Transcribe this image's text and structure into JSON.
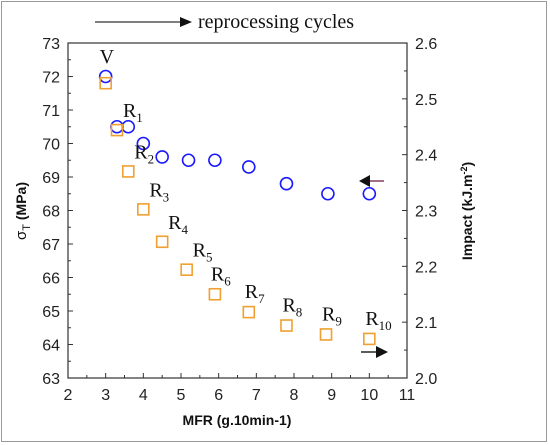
{
  "chart_data": {
    "type": "scatter",
    "title": "",
    "xlabel": "MFR (g.10min-1)",
    "ylabel_left": "σT (MPa)",
    "ylabel_left_symbol": "σ",
    "ylabel_left_sub": "T",
    "ylabel_left_unit": " (MPa)",
    "ylabel_right": "Impact (kJ.m-2)",
    "ylabel_right_main": "Impact (kJ.m",
    "ylabel_right_sup": "-2",
    "ylabel_right_end": ")",
    "xlim": [
      2,
      11
    ],
    "ylim_left": [
      63,
      73
    ],
    "ylim_right": [
      2.0,
      2.6
    ],
    "x_ticks": [
      "2",
      "3",
      "4",
      "5",
      "6",
      "7",
      "8",
      "9",
      "10",
      "11"
    ],
    "y_left_ticks": [
      "63",
      "64",
      "65",
      "66",
      "67",
      "68",
      "69",
      "70",
      "71",
      "72",
      "73"
    ],
    "y_right_ticks": [
      "2.0",
      "2.1",
      "2.2",
      "2.3",
      "2.4",
      "2.5",
      "2.6"
    ],
    "grid": false,
    "top_annotation": "reprocessing cycles",
    "series": [
      {
        "name": "σT",
        "axis": "left",
        "marker": "circle",
        "color": "#1a1aff",
        "direction_arrow": "left",
        "points": [
          {
            "x": 3.0,
            "y": 72.0
          },
          {
            "x": 3.3,
            "y": 70.5
          },
          {
            "x": 3.6,
            "y": 70.5
          },
          {
            "x": 4.0,
            "y": 70.0
          },
          {
            "x": 4.5,
            "y": 69.6
          },
          {
            "x": 5.2,
            "y": 69.5
          },
          {
            "x": 5.9,
            "y": 69.5
          },
          {
            "x": 6.8,
            "y": 69.3
          },
          {
            "x": 7.8,
            "y": 68.8
          },
          {
            "x": 8.9,
            "y": 68.5
          },
          {
            "x": 10.0,
            "y": 68.5
          }
        ]
      },
      {
        "name": "Impact",
        "axis": "right",
        "marker": "square",
        "color": "#f0a030",
        "direction_arrow": "right",
        "points": [
          {
            "x": 3.0,
            "y": 2.528,
            "label": "V",
            "sub": ""
          },
          {
            "x": 3.3,
            "y": 2.444,
            "label": "R",
            "sub": "1"
          },
          {
            "x": 3.6,
            "y": 2.37,
            "label": "R",
            "sub": "2"
          },
          {
            "x": 4.0,
            "y": 2.302,
            "label": "R",
            "sub": "3"
          },
          {
            "x": 4.5,
            "y": 2.244,
            "label": "R",
            "sub": "4"
          },
          {
            "x": 5.15,
            "y": 2.194,
            "label": "R",
            "sub": "5"
          },
          {
            "x": 5.9,
            "y": 2.15,
            "label": "R",
            "sub": "6"
          },
          {
            "x": 6.8,
            "y": 2.118,
            "label": "R",
            "sub": "7"
          },
          {
            "x": 7.8,
            "y": 2.094,
            "label": "R",
            "sub": "8"
          },
          {
            "x": 8.85,
            "y": 2.078,
            "label": "R",
            "sub": "9"
          },
          {
            "x": 10.0,
            "y": 2.07,
            "label": "R",
            "sub": "10"
          }
        ]
      }
    ]
  }
}
